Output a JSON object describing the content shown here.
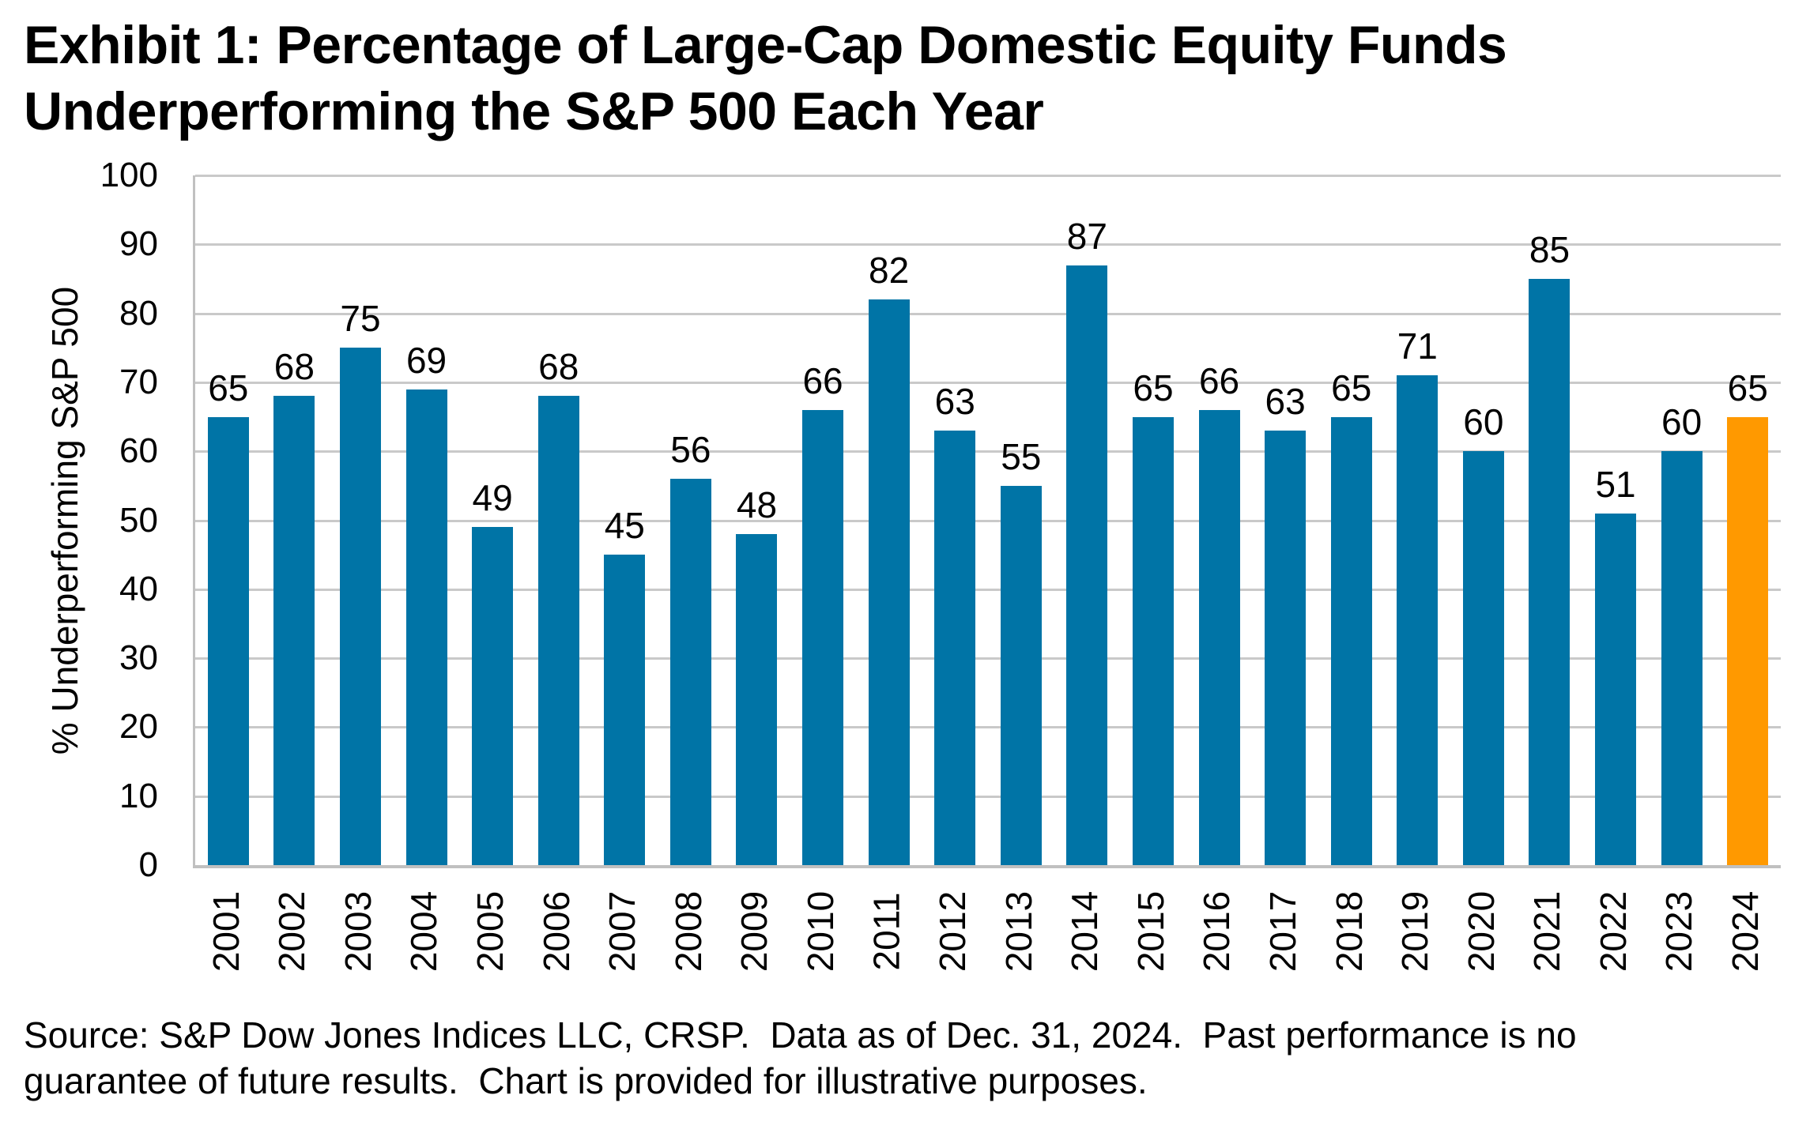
{
  "title": "Exhibit 1: Percentage of Large-Cap Domestic Equity Funds Underperforming the S&P 500 Each Year",
  "source_note": "Source: S&P Dow Jones Indices LLC, CRSP.  Data as of Dec. 31, 2024.  Past performance is no guarantee of future results.  Chart is provided for illustrative purposes.",
  "colors": {
    "bar": "#0074A6",
    "highlight": "#FF9900",
    "gridline": "#C9C9C9",
    "axis_line": "#C0C0C0",
    "text": "#000000"
  },
  "chart_data": {
    "type": "bar",
    "title": "Exhibit 1: Percentage of Large-Cap Domestic Equity Funds Underperforming the S&P 500 Each Year",
    "xlabel": "",
    "ylabel": "% Underperforming S&P 500",
    "ylim": [
      0,
      100
    ],
    "ytick_step": 10,
    "grid": true,
    "legend": "none",
    "value_labels_shown": true,
    "categories": [
      "2001",
      "2002",
      "2003",
      "2004",
      "2005",
      "2006",
      "2007",
      "2008",
      "2009",
      "2010",
      "2011",
      "2012",
      "2013",
      "2014",
      "2015",
      "2016",
      "2017",
      "2018",
      "2019",
      "2020",
      "2021",
      "2022",
      "2023",
      "2024"
    ],
    "values": [
      65,
      68,
      75,
      69,
      49,
      68,
      45,
      56,
      48,
      66,
      82,
      63,
      55,
      87,
      65,
      66,
      63,
      65,
      71,
      60,
      85,
      51,
      60,
      65
    ],
    "highlight_index": 23,
    "bar_color": "#0074A6",
    "highlight_color": "#FF9900"
  }
}
